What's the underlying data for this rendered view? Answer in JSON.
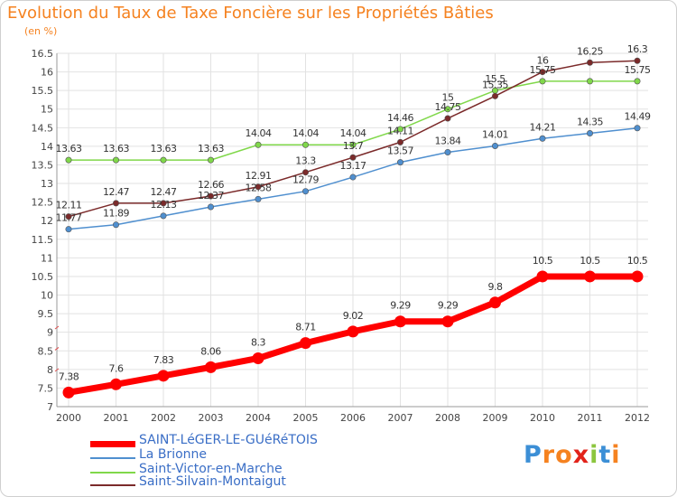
{
  "title": "Evolution du Taux de Taxe Foncière sur les Propriétés Bâties",
  "subtitle": "(en %)",
  "logo": {
    "text": "Proxiti",
    "letters": [
      "P",
      "r",
      "o",
      "x",
      "i",
      "t",
      "i"
    ],
    "colors": [
      "#3c8fd6",
      "#f58220",
      "#f58220",
      "#e2231a",
      "#8cc63f",
      "#3c8fd6",
      "#f58220"
    ]
  },
  "chart_data": {
    "type": "line",
    "x": [
      2000,
      2001,
      2002,
      2003,
      2004,
      2005,
      2006,
      2007,
      2008,
      2009,
      2010,
      2011,
      2012
    ],
    "ylim": [
      7,
      16.5
    ],
    "yticks": [
      "7",
      "7.5",
      "8",
      "8.5",
      "9",
      "9.5",
      "10",
      "10.5",
      "11",
      "11.5",
      "12",
      "12.5",
      "13",
      "13.5",
      "14",
      "14.5",
      "15",
      "15.5",
      "16",
      "16.5"
    ],
    "grid": true,
    "legend_position": "bottom-left",
    "series": [
      {
        "name": "SAINT-LéGER-LE-GUéRéTOIS",
        "color": "#ff0000",
        "values": [
          7.38,
          7.6,
          7.83,
          8.06,
          8.3,
          8.71,
          9.02,
          9.29,
          9.29,
          9.8,
          10.5,
          10.5,
          10.5
        ],
        "labels": [
          "7.38",
          "7.6",
          "7.83",
          "8.06",
          "8.3",
          "8.71",
          "9.02",
          "9.29",
          "9.29",
          "9.8",
          "10.5",
          "10.5",
          "10.5"
        ]
      },
      {
        "name": "La Brionne",
        "color": "#4f8fcf",
        "values": [
          11.77,
          11.89,
          12.13,
          12.37,
          12.58,
          12.79,
          13.17,
          13.57,
          13.84,
          14.01,
          14.21,
          14.35,
          14.49
        ],
        "labels": [
          "11.77",
          "11.89",
          "12.13",
          "12.37",
          "12.58",
          "12.79",
          "13.17",
          "13.57",
          "13.84",
          "14.01",
          "14.21",
          "14.35",
          "14.49"
        ]
      },
      {
        "name": "Saint-Victor-en-Marche",
        "color": "#80d84a",
        "values": [
          13.63,
          13.63,
          13.63,
          13.63,
          14.04,
          14.04,
          14.04,
          14.46,
          15,
          15.5,
          15.75,
          15.75,
          15.75
        ],
        "labels": [
          "13.63",
          "13.63",
          "13.63",
          "13.63",
          "14.04",
          "14.04",
          "14.04",
          "14.46",
          "15",
          "15.5",
          "15.75",
          "",
          "15.75"
        ]
      },
      {
        "name": "Saint-Silvain-Montaigut",
        "color": "#7b2a2a",
        "values": [
          12.11,
          12.47,
          12.47,
          12.66,
          12.91,
          13.3,
          13.7,
          14.11,
          14.75,
          15.35,
          16,
          16.25,
          16.3
        ],
        "labels": [
          "12.11",
          "12.47",
          "12.47",
          "12.66",
          "12.91",
          "13.3",
          "13.7",
          "14.11",
          "14.75",
          "15.35",
          "16",
          "16.25",
          "16.3"
        ]
      }
    ]
  }
}
